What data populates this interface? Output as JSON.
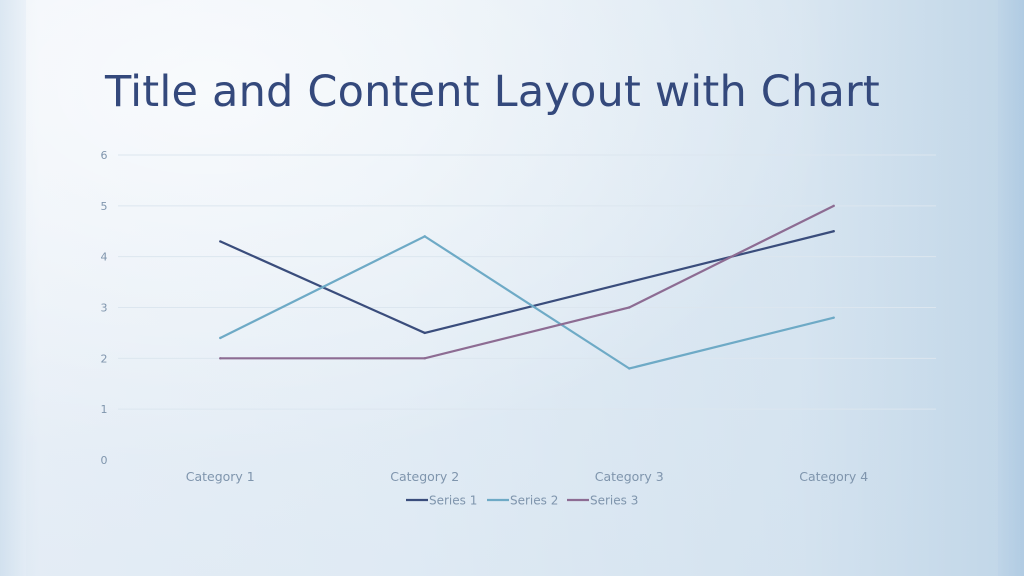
{
  "slide": {
    "title": "Title and Content Layout with Chart"
  },
  "colors": {
    "background": "#e8f0f7",
    "title": "#34497c",
    "axis_text": "#7f95ad",
    "gridline": "#dce6ef",
    "series_1": "#3a4d7c",
    "series_2": "#6eaac6",
    "series_3": "#8d6c93"
  },
  "chart_data": {
    "type": "line",
    "title": "",
    "xlabel": "",
    "ylabel": "",
    "categories": [
      "Category 1",
      "Category 2",
      "Category 3",
      "Category 4"
    ],
    "series": [
      {
        "name": "Series 1",
        "values": [
          4.3,
          2.5,
          3.5,
          4.5
        ]
      },
      {
        "name": "Series 2",
        "values": [
          2.4,
          4.4,
          1.8,
          2.8
        ]
      },
      {
        "name": "Series 3",
        "values": [
          2,
          2,
          3,
          5
        ]
      }
    ],
    "ylim": [
      0,
      6
    ],
    "yticks": [
      "0",
      "1",
      "2",
      "3",
      "4",
      "5",
      "6"
    ],
    "grid": true,
    "legend_position": "bottom"
  }
}
